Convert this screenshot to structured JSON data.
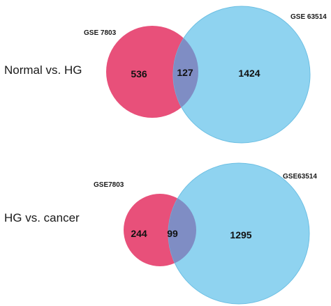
{
  "colors": {
    "left_set": "#e8507a",
    "right_set": "#8fd3f0",
    "right_stroke": "#6cbfe3",
    "overlap": "#7f8dc4"
  },
  "diagrams": [
    {
      "label": "Normal vs. HG",
      "left_set": "GSE 7803",
      "right_set": "GSE 63514",
      "left_only": "536",
      "overlap": "127",
      "right_only": "1424"
    },
    {
      "label": "HG vs. cancer",
      "left_set": "GSE7803",
      "right_set": "GSE63514",
      "left_only": "244",
      "overlap": "99",
      "right_only": "1295"
    }
  ]
}
